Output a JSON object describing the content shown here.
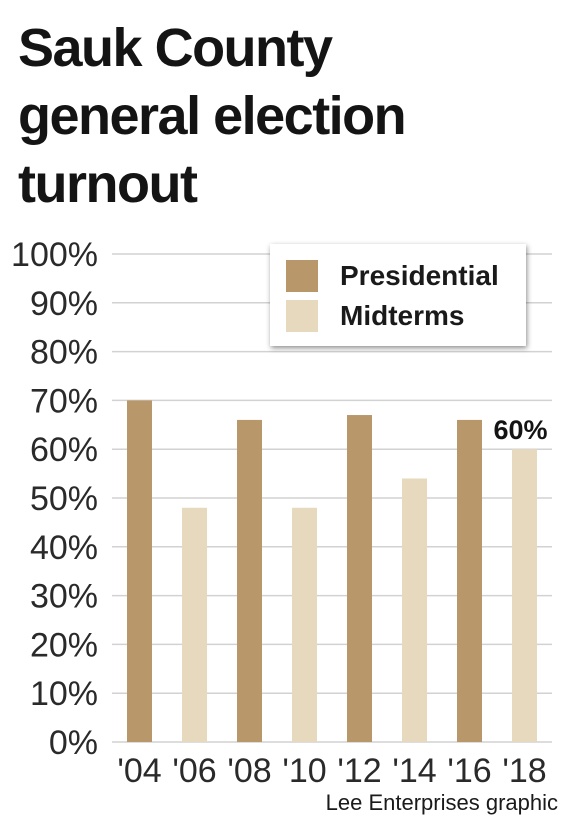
{
  "title": "Sauk County\ngeneral election\nturnout",
  "credit": "Lee Enterprises graphic",
  "colors": {
    "presidential": "#b8976a",
    "midterms": "#e7d9bd",
    "grid": "#d2d2d2"
  },
  "chart_data": {
    "type": "bar",
    "title": "Sauk County general election turnout",
    "categories": [
      "'04",
      "'06",
      "'08",
      "'10",
      "'12",
      "'14",
      "'16",
      "'18"
    ],
    "values": [
      70,
      48,
      66,
      48,
      67,
      54,
      66,
      60
    ],
    "category_series": [
      "Presidential",
      "Midterms",
      "Presidential",
      "Midterms",
      "Presidential",
      "Midterms",
      "Presidential",
      "Midterms"
    ],
    "legend": [
      "Presidential",
      "Midterms"
    ],
    "legend_position": "top-right",
    "ylim": [
      0,
      100
    ],
    "yticks": [
      "0%",
      "10%",
      "20%",
      "30%",
      "40%",
      "50%",
      "60%",
      "70%",
      "80%",
      "90%",
      "100%"
    ],
    "grid": true,
    "annotations": [
      {
        "category": "'18",
        "label": "60%"
      }
    ]
  }
}
